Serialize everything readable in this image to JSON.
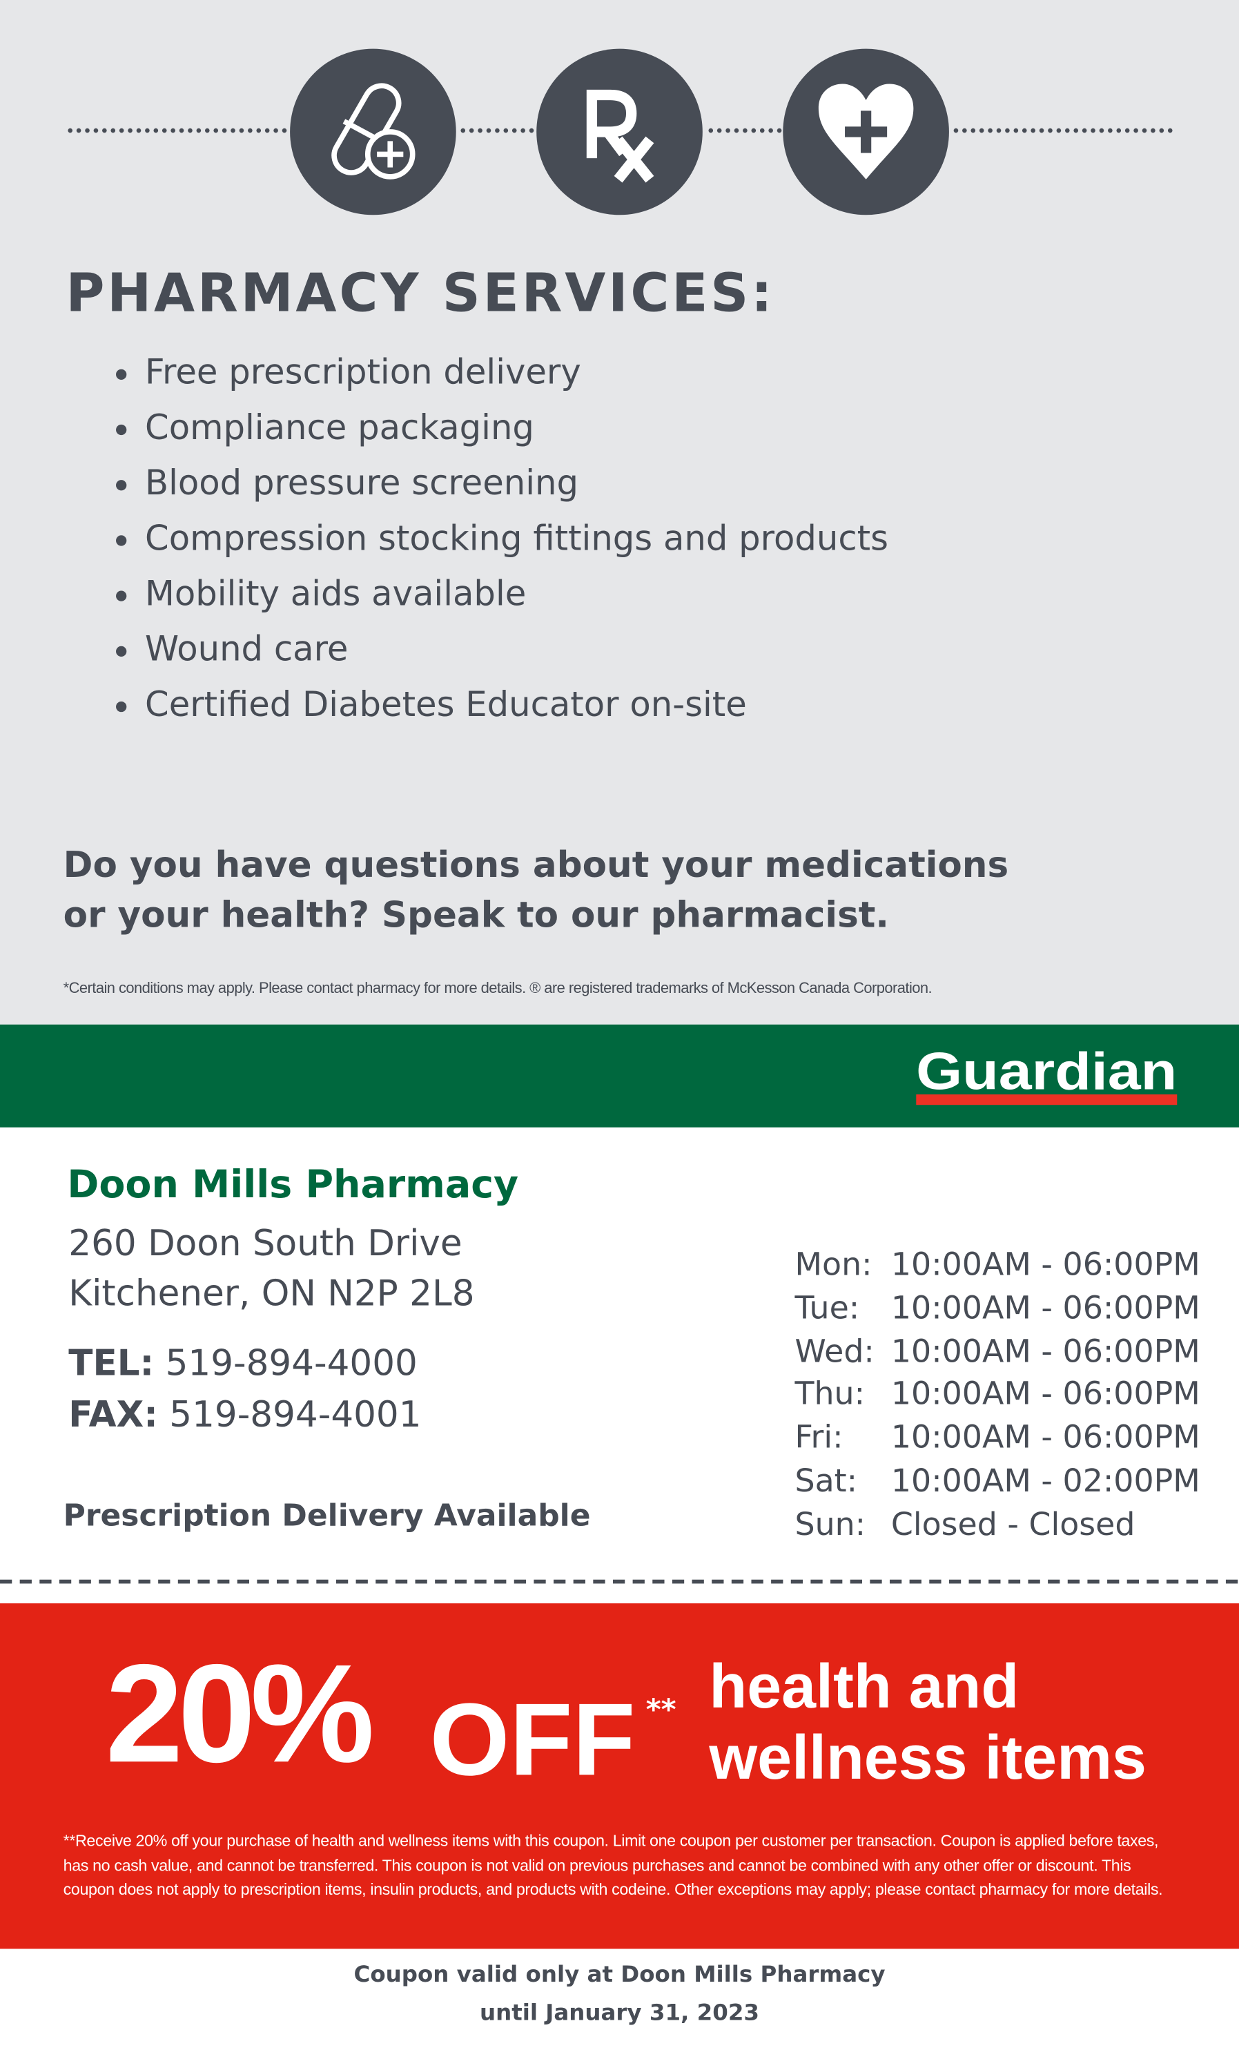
{
  "icons": [
    "pill-plus-icon",
    "rx-icon",
    "heart-plus-icon"
  ],
  "colors": {
    "background_top": "#e6e7e9",
    "text": "#474c55",
    "guardian_green": "#00683e",
    "coupon_red": "#e32315"
  },
  "services": {
    "title": "PHARMACY SERVICES:",
    "items": [
      "Free prescription delivery",
      "Compliance packaging",
      "Blood pressure screening",
      "Compression stocking fittings and products",
      "Mobility aids available",
      "Wound care",
      "Certified Diabetes Educator on-site"
    ]
  },
  "question": {
    "line1": "Do you have questions about your medications",
    "line2": "or your health? Speak to our pharmacist."
  },
  "disclaimer": "*Certain conditions may apply. Please contact pharmacy for more details. ® are registered trademarks of McKesson Canada Corporation.",
  "brand": {
    "logo_text": "Guardian"
  },
  "store": {
    "name": "Doon Mills Pharmacy",
    "address1": "260 Doon South Drive",
    "address2": "Kitchener, ON N2P 2L8",
    "tel_label": "TEL:",
    "tel": "519-894-4000",
    "fax_label": "FAX:",
    "fax": "519-894-4001",
    "delivery": "Prescription Delivery Available"
  },
  "hours": [
    {
      "day": "Mon:",
      "time": "10:00AM - 06:00PM"
    },
    {
      "day": "Tue:",
      "time": "10:00AM - 06:00PM"
    },
    {
      "day": "Wed:",
      "time": "10:00AM - 06:00PM"
    },
    {
      "day": "Thu:",
      "time": "10:00AM - 06:00PM"
    },
    {
      "day": "Fri:",
      "time": "10:00AM - 06:00PM"
    },
    {
      "day": "Sat:",
      "time": "10:00AM - 02:00PM"
    },
    {
      "day": "Sun:",
      "time": "Closed - Closed"
    }
  ],
  "coupon": {
    "percent": "20%",
    "off": "OFF",
    "stars": "**",
    "line1": "health and",
    "line2": "wellness items",
    "fine_print": "**Receive 20% off your purchase of health and wellness items with this coupon. Limit one coupon per customer per transaction. Coupon is applied before taxes, has no cash value, and cannot be transferred. This coupon is not valid on previous purchases and cannot be combined with any other offer or discount. This coupon does not apply to prescription items, insulin products, and products with codeine. Other exceptions may apply; please contact pharmacy for more details.",
    "valid_line1": "Coupon valid only at Doon Mills Pharmacy",
    "valid_line2": "until January 31, 2023"
  }
}
